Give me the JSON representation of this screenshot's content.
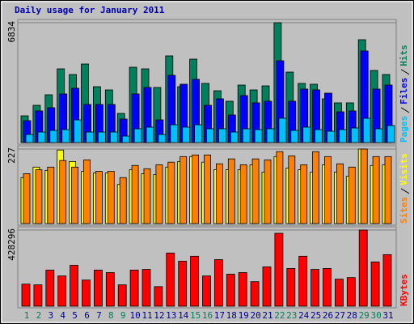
{
  "chart_data": [
    {
      "type": "bar",
      "title": "Daily usage for January 2011",
      "categories": [
        "1",
        "2",
        "3",
        "4",
        "5",
        "6",
        "7",
        "8",
        "9",
        "10",
        "11",
        "12",
        "13",
        "14",
        "15",
        "16",
        "17",
        "18",
        "19",
        "20",
        "21",
        "22",
        "23",
        "24",
        "25",
        "26",
        "27",
        "28",
        "29",
        "30",
        "31"
      ],
      "category_colors": [
        "#00805c",
        "#00805c",
        "#00008b",
        "#00008b",
        "#00008b",
        "#00008b",
        "#00008b",
        "#00805c",
        "#00805c",
        "#00008b",
        "#00008b",
        "#00008b",
        "#00008b",
        "#00008b",
        "#00805c",
        "#00805c",
        "#00008b",
        "#00008b",
        "#00008b",
        "#00008b",
        "#00008b",
        "#00805c",
        "#00805c",
        "#00008b",
        "#00008b",
        "#00008b",
        "#00008b",
        "#00008b",
        "#00805c",
        "#00805c",
        "#00008b"
      ],
      "ylim": [
        0,
        6834
      ],
      "yticks": [
        6834
      ],
      "series": [
        {
          "name": "Hits",
          "color": "#00805c",
          "values": [
            1524,
            2124,
            2724,
            4202,
            3879,
            4479,
            3186,
            3001,
            1662,
            4294,
            4202,
            3140,
            4941,
            3186,
            4756,
            3371,
            2955,
            2355,
            3278,
            3001,
            3232,
            6834,
            4017,
            3371,
            3325,
            2493,
            2263,
            2263,
            5864,
            4110,
            3879
          ]
        },
        {
          "name": "Files",
          "color": "#0000ff",
          "values": [
            1247,
            1801,
            1985,
            2770,
            3094,
            2170,
            2170,
            2170,
            1339,
            2770,
            3140,
            1293,
            3833,
            3325,
            3602,
            2124,
            2493,
            1570,
            2678,
            2263,
            2355,
            4664,
            2355,
            3048,
            3001,
            2817,
            1755,
            1801,
            5218,
            3048,
            3278
          ]
        },
        {
          "name": "Pages",
          "color": "#00c0ff",
          "values": [
            462,
            600,
            693,
            739,
            1293,
            600,
            600,
            600,
            369,
            785,
            877,
            462,
            1016,
            877,
            1016,
            785,
            785,
            600,
            785,
            739,
            785,
            1385,
            693,
            877,
            739,
            646,
            739,
            831,
            1385,
            785,
            970
          ]
        }
      ]
    },
    {
      "type": "bar",
      "ylim": [
        0,
        227
      ],
      "yticks": [
        227
      ],
      "series": [
        {
          "name": "Visits",
          "color": "#ffff00",
          "values": [
            140,
            172,
            162,
            224,
            189,
            159,
            154,
            154,
            119,
            164,
            152,
            149,
            172,
            189,
            204,
            187,
            164,
            164,
            164,
            179,
            157,
            204,
            169,
            164,
            157,
            179,
            157,
            144,
            227,
            177,
            179
          ]
        },
        {
          "name": "Sites",
          "color": "#ff8000",
          "values": [
            152,
            164,
            172,
            192,
            172,
            194,
            159,
            159,
            140,
            177,
            167,
            179,
            187,
            204,
            209,
            209,
            182,
            197,
            179,
            197,
            194,
            219,
            206,
            179,
            219,
            204,
            182,
            172,
            227,
            204,
            204
          ]
        }
      ]
    },
    {
      "type": "bar",
      "ylim": [
        0,
        428296
      ],
      "yticks": [
        428296
      ],
      "series": [
        {
          "name": "KBytes",
          "color": "#ff0000",
          "values": [
            124000,
            120000,
            203000,
            170000,
            230000,
            147000,
            203000,
            189000,
            120000,
            203000,
            207000,
            110000,
            299000,
            253000,
            281000,
            170000,
            262000,
            180000,
            189000,
            138000,
            221000,
            410000,
            212000,
            281000,
            207000,
            212000,
            152000,
            161000,
            428296,
            249000,
            290000
          ]
        }
      ]
    }
  ]
}
